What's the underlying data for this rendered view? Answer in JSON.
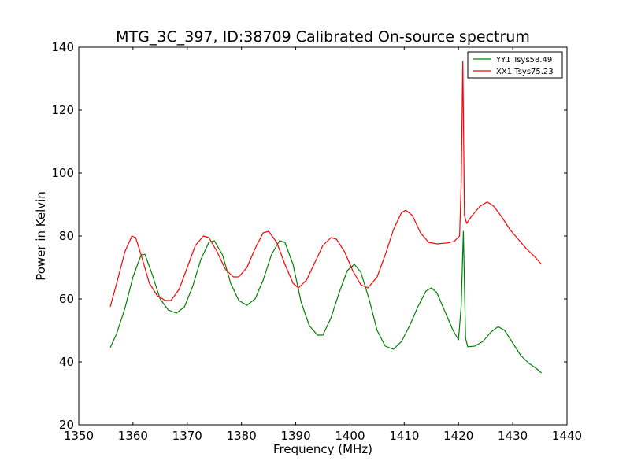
{
  "chart_data": {
    "type": "line",
    "title": "MTG_3C_397, ID:38709 Calibrated On-source spectrum",
    "xlabel": "Frequency (MHz)",
    "ylabel": "Power in Kelvin",
    "xlim": [
      1350,
      1440
    ],
    "ylim": [
      20,
      140
    ],
    "xticks": [
      "1350",
      "1360",
      "1370",
      "1380",
      "1390",
      "1400",
      "1410",
      "1420",
      "1430",
      "1440"
    ],
    "yticks": [
      "20",
      "40",
      "60",
      "80",
      "100",
      "120",
      "140"
    ],
    "grid": false,
    "legend_position": "top-right",
    "series": [
      {
        "name": "YY1 Tsys58.49",
        "color": "#008000",
        "points": [
          [
            1355.8,
            44.5
          ],
          [
            1357.0,
            49.0
          ],
          [
            1358.5,
            57.0
          ],
          [
            1360.0,
            67.0
          ],
          [
            1361.5,
            74.0
          ],
          [
            1362.2,
            74.2
          ],
          [
            1363.5,
            68.0
          ],
          [
            1365.0,
            60.0
          ],
          [
            1366.5,
            56.5
          ],
          [
            1368.0,
            55.5
          ],
          [
            1369.5,
            57.5
          ],
          [
            1371.0,
            64.0
          ],
          [
            1372.5,
            72.5
          ],
          [
            1374.0,
            78.0
          ],
          [
            1375.0,
            78.5
          ],
          [
            1376.5,
            74.0
          ],
          [
            1378.0,
            65.0
          ],
          [
            1379.5,
            59.5
          ],
          [
            1381.0,
            58.0
          ],
          [
            1382.5,
            60.0
          ],
          [
            1384.0,
            66.0
          ],
          [
            1385.5,
            74.0
          ],
          [
            1387.0,
            78.5
          ],
          [
            1388.0,
            78.0
          ],
          [
            1389.5,
            71.0
          ],
          [
            1391.0,
            59.0
          ],
          [
            1392.5,
            51.5
          ],
          [
            1394.0,
            48.5
          ],
          [
            1395.0,
            48.5
          ],
          [
            1396.5,
            54.0
          ],
          [
            1398.0,
            62.0
          ],
          [
            1399.5,
            69.0
          ],
          [
            1400.8,
            71.0
          ],
          [
            1402.0,
            68.5
          ],
          [
            1403.5,
            60.0
          ],
          [
            1405.0,
            50.0
          ],
          [
            1406.5,
            45.0
          ],
          [
            1408.0,
            44.0
          ],
          [
            1409.5,
            46.5
          ],
          [
            1411.0,
            51.5
          ],
          [
            1412.5,
            57.5
          ],
          [
            1414.0,
            62.5
          ],
          [
            1415.0,
            63.5
          ],
          [
            1416.0,
            62.0
          ],
          [
            1417.5,
            56.0
          ],
          [
            1419.0,
            50.0
          ],
          [
            1420.0,
            47.0
          ],
          [
            1420.5,
            58.0
          ],
          [
            1420.9,
            81.5
          ],
          [
            1421.3,
            47.5
          ],
          [
            1421.7,
            44.8
          ],
          [
            1423.0,
            45.0
          ],
          [
            1424.5,
            46.5
          ],
          [
            1426.0,
            49.5
          ],
          [
            1427.3,
            51.2
          ],
          [
            1428.5,
            50.0
          ],
          [
            1430.0,
            46.0
          ],
          [
            1431.5,
            42.0
          ],
          [
            1433.0,
            39.5
          ],
          [
            1434.3,
            38.0
          ],
          [
            1435.3,
            36.5
          ]
        ]
      },
      {
        "name": "XX1 Tsys75.23",
        "color": "#ff0000",
        "points": [
          [
            1355.8,
            57.5
          ],
          [
            1357.0,
            65.0
          ],
          [
            1358.5,
            75.0
          ],
          [
            1359.8,
            80.0
          ],
          [
            1360.5,
            79.5
          ],
          [
            1361.5,
            74.0
          ],
          [
            1363.0,
            65.0
          ],
          [
            1364.5,
            61.0
          ],
          [
            1366.0,
            59.5
          ],
          [
            1367.0,
            59.5
          ],
          [
            1368.5,
            63.0
          ],
          [
            1370.0,
            70.0
          ],
          [
            1371.5,
            77.0
          ],
          [
            1373.0,
            80.0
          ],
          [
            1374.0,
            79.5
          ],
          [
            1375.5,
            75.0
          ],
          [
            1377.0,
            69.5
          ],
          [
            1378.5,
            67.0
          ],
          [
            1379.5,
            67.0
          ],
          [
            1381.0,
            70.0
          ],
          [
            1382.5,
            76.0
          ],
          [
            1384.0,
            81.0
          ],
          [
            1385.0,
            81.5
          ],
          [
            1386.5,
            78.0
          ],
          [
            1388.0,
            71.0
          ],
          [
            1389.5,
            65.0
          ],
          [
            1390.5,
            63.5
          ],
          [
            1392.0,
            66.0
          ],
          [
            1393.5,
            71.5
          ],
          [
            1395.0,
            77.0
          ],
          [
            1396.5,
            79.5
          ],
          [
            1397.5,
            79.0
          ],
          [
            1399.0,
            75.0
          ],
          [
            1400.5,
            69.0
          ],
          [
            1402.0,
            64.5
          ],
          [
            1403.3,
            63.5
          ],
          [
            1405.0,
            67.0
          ],
          [
            1406.5,
            74.0
          ],
          [
            1408.0,
            82.0
          ],
          [
            1409.5,
            87.5
          ],
          [
            1410.3,
            88.2
          ],
          [
            1411.5,
            86.5
          ],
          [
            1413.0,
            81.0
          ],
          [
            1414.5,
            78.0
          ],
          [
            1416.0,
            77.5
          ],
          [
            1418.0,
            77.8
          ],
          [
            1419.2,
            78.3
          ],
          [
            1420.2,
            80.0
          ],
          [
            1420.5,
            97.0
          ],
          [
            1420.8,
            135.5
          ],
          [
            1421.1,
            86.5
          ],
          [
            1421.5,
            84.0
          ],
          [
            1422.5,
            86.5
          ],
          [
            1424.0,
            89.5
          ],
          [
            1425.3,
            90.8
          ],
          [
            1426.5,
            89.5
          ],
          [
            1428.0,
            86.0
          ],
          [
            1429.5,
            82.0
          ],
          [
            1431.0,
            79.0
          ],
          [
            1432.5,
            76.0
          ],
          [
            1434.0,
            73.5
          ],
          [
            1435.3,
            71.0
          ]
        ]
      }
    ]
  }
}
